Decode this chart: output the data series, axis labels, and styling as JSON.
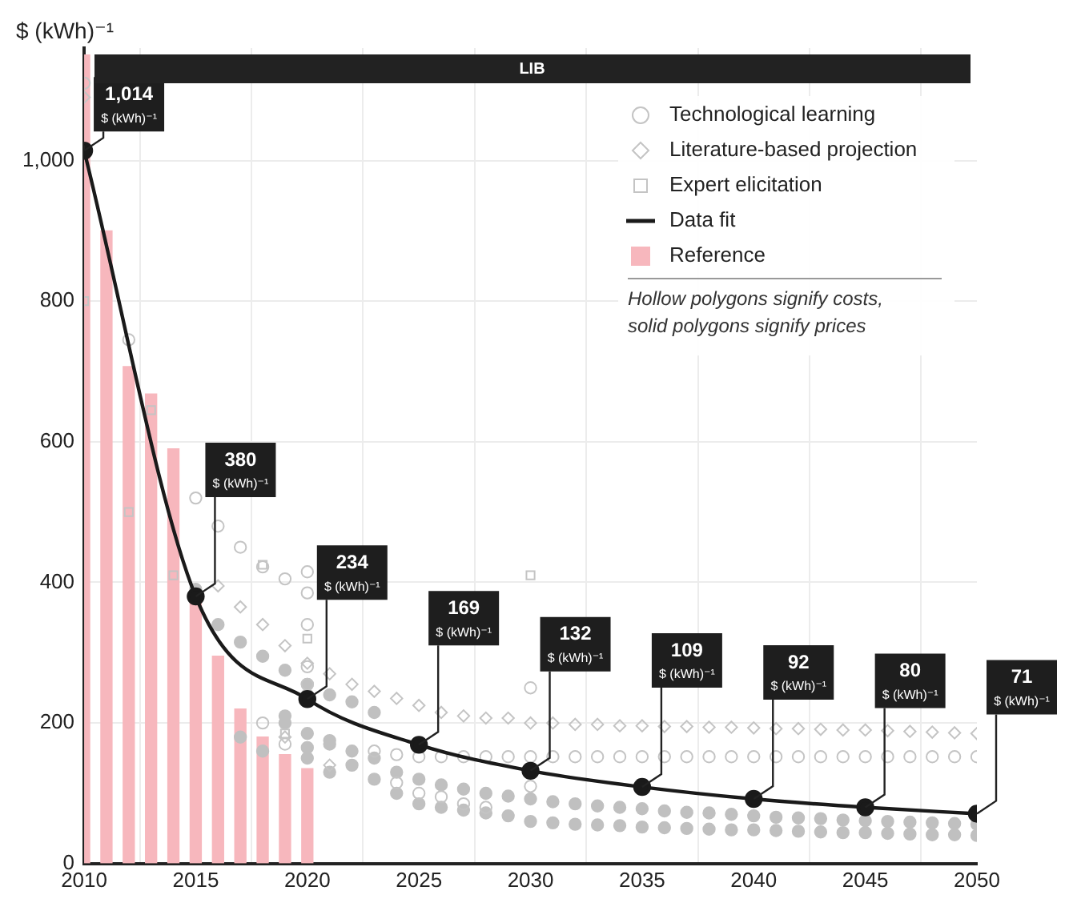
{
  "chart_data": {
    "type": "scatter",
    "title": "LIB",
    "ylabel": "$ (kWh)⁻¹",
    "xlim": [
      2010,
      2050
    ],
    "xticks": [
      2010,
      2015,
      2020,
      2025,
      2030,
      2035,
      2040,
      2045,
      2050
    ],
    "ylim": [
      0,
      1160
    ],
    "yticks": [
      0,
      200,
      400,
      600,
      800,
      {
        "value": 1000,
        "label": "1,000"
      }
    ],
    "grid": true,
    "legend": "top right",
    "annotations": [
      "Hollow polygons signify costs, solid polygons signify prices"
    ],
    "series": [
      {
        "name": "Technological learning",
        "type": "scatter",
        "marker": "circle",
        "color": "#c4c4c4",
        "x": [
          2010,
          2012,
          2015,
          2016,
          2017,
          2018,
          2019,
          2020,
          2020,
          2020,
          2020,
          2020,
          2018,
          2019,
          2023,
          2024,
          2025,
          2026,
          2027,
          2028,
          2029,
          2030,
          2031,
          2032,
          2033,
          2034,
          2035,
          2036,
          2037,
          2038,
          2039,
          2040,
          2041,
          2042,
          2043,
          2044,
          2045,
          2046,
          2047,
          2048,
          2049,
          2050,
          2030,
          2024,
          2025,
          2026,
          2027,
          2028,
          2029,
          2030
        ],
        "values": [
          1110,
          745,
          520,
          480,
          450,
          422,
          405,
          415,
          385,
          340,
          280,
          255,
          200,
          170,
          160,
          155,
          152,
          152,
          152,
          152,
          152,
          152,
          152,
          152,
          152,
          152,
          152,
          152,
          152,
          152,
          152,
          152,
          152,
          152,
          152,
          152,
          152,
          152,
          152,
          152,
          152,
          152,
          250,
          115,
          100,
          95,
          85,
          80,
          null,
          110
        ]
      },
      {
        "name": "Literature-based projection",
        "type": "scatter",
        "marker": "diamond",
        "color": "#c4c4c4",
        "x": [
          2010,
          2015,
          2016,
          2017,
          2018,
          2019,
          2020,
          2021,
          2022,
          2023,
          2024,
          2025,
          2026,
          2027,
          2028,
          2029,
          2030,
          2031,
          2032,
          2033,
          2034,
          2035,
          2036,
          2037,
          2038,
          2039,
          2040,
          2041,
          2042,
          2043,
          2044,
          2045,
          2046,
          2047,
          2048,
          2049,
          2050,
          2021,
          2019
        ],
        "values": [
          1090,
          null,
          395,
          365,
          340,
          310,
          285,
          270,
          255,
          245,
          235,
          225,
          215,
          210,
          207,
          207,
          200,
          200,
          198,
          198,
          196,
          196,
          195,
          195,
          194,
          194,
          193,
          192,
          192,
          191,
          190,
          190,
          189,
          188,
          187,
          186,
          185,
          140,
          180
        ]
      },
      {
        "name": "Expert elicitation",
        "type": "scatter",
        "marker": "square",
        "color": "#c4c4c4",
        "x": [
          2010,
          2012,
          2013,
          2014,
          2018,
          2030,
          2019,
          2020
        ],
        "values": [
          800,
          500,
          645,
          410,
          425,
          410,
          185,
          320
        ]
      },
      {
        "name": "Data fit",
        "type": "line",
        "marker": "circle",
        "line_style": "solid",
        "color": "#1a1a1a",
        "x": [
          2010,
          2015,
          2020,
          2025,
          2030,
          2035,
          2040,
          2045,
          2050
        ],
        "values": [
          1014,
          380,
          234,
          169,
          132,
          109,
          92,
          80,
          71
        ],
        "value_labels": [
          "1,014\n$ (kWh)⁻¹",
          "380\n$ (kWh)⁻¹",
          "234\n$ (kWh)⁻¹",
          "169\n$ (kWh)⁻¹",
          "132\n$ (kWh)⁻¹",
          "109\n$ (kWh)⁻¹",
          "92\n$ (kWh)⁻¹",
          "80\n$ (kWh)⁻¹",
          "71\n$ (kWh)⁻¹"
        ]
      },
      {
        "name": "Reference",
        "type": "bar",
        "color": "#f7b7bd",
        "x": [
          2010,
          2011,
          2012,
          2013,
          2014,
          2015,
          2016,
          2017,
          2018,
          2019,
          2020
        ],
        "values": [
          1150,
          900,
          707,
          668,
          590,
          375,
          295,
          220,
          180,
          155,
          135
        ]
      },
      {
        "marker": "circle",
        "color": "#c0c0c0",
        "x": [
          2015,
          2016,
          2017,
          2018,
          2019,
          2020,
          2020,
          2020,
          2020,
          2020,
          2019,
          2019,
          2018,
          2017,
          2021,
          2021,
          2021,
          2021,
          2022,
          2022,
          2022,
          2023,
          2023,
          2023,
          2024,
          2024,
          2025,
          2026,
          2027,
          2028,
          2029,
          2030,
          2031,
          2032,
          2033,
          2034,
          2035,
          2036,
          2037,
          2038,
          2039,
          2040,
          2041,
          2042,
          2043,
          2044,
          2045,
          2046,
          2047,
          2048,
          2049,
          2050,
          2025,
          2026,
          2027,
          2028,
          2029,
          2030,
          2031,
          2032,
          2033,
          2034,
          2035,
          2036,
          2037,
          2038,
          2039,
          2040,
          2041,
          2042,
          2043,
          2044,
          2045,
          2046,
          2047,
          2048,
          2049,
          2050
        ],
        "values": [
          390,
          340,
          315,
          295,
          275,
          255,
          240,
          185,
          165,
          150,
          210,
          200,
          160,
          180,
          240,
          170,
          175,
          130,
          230,
          160,
          140,
          215,
          150,
          120,
          130,
          100,
          120,
          112,
          106,
          100,
          96,
          92,
          88,
          85,
          82,
          80,
          78,
          75,
          73,
          72,
          70,
          68,
          66,
          65,
          64,
          62,
          61,
          60,
          59,
          58,
          57,
          56,
          85,
          80,
          76,
          72,
          68,
          60,
          58,
          56,
          55,
          54,
          52,
          51,
          50,
          49,
          48,
          48,
          47,
          46,
          45,
          44,
          44,
          43,
          42,
          41,
          41,
          40
        ]
      }
    ]
  }
}
